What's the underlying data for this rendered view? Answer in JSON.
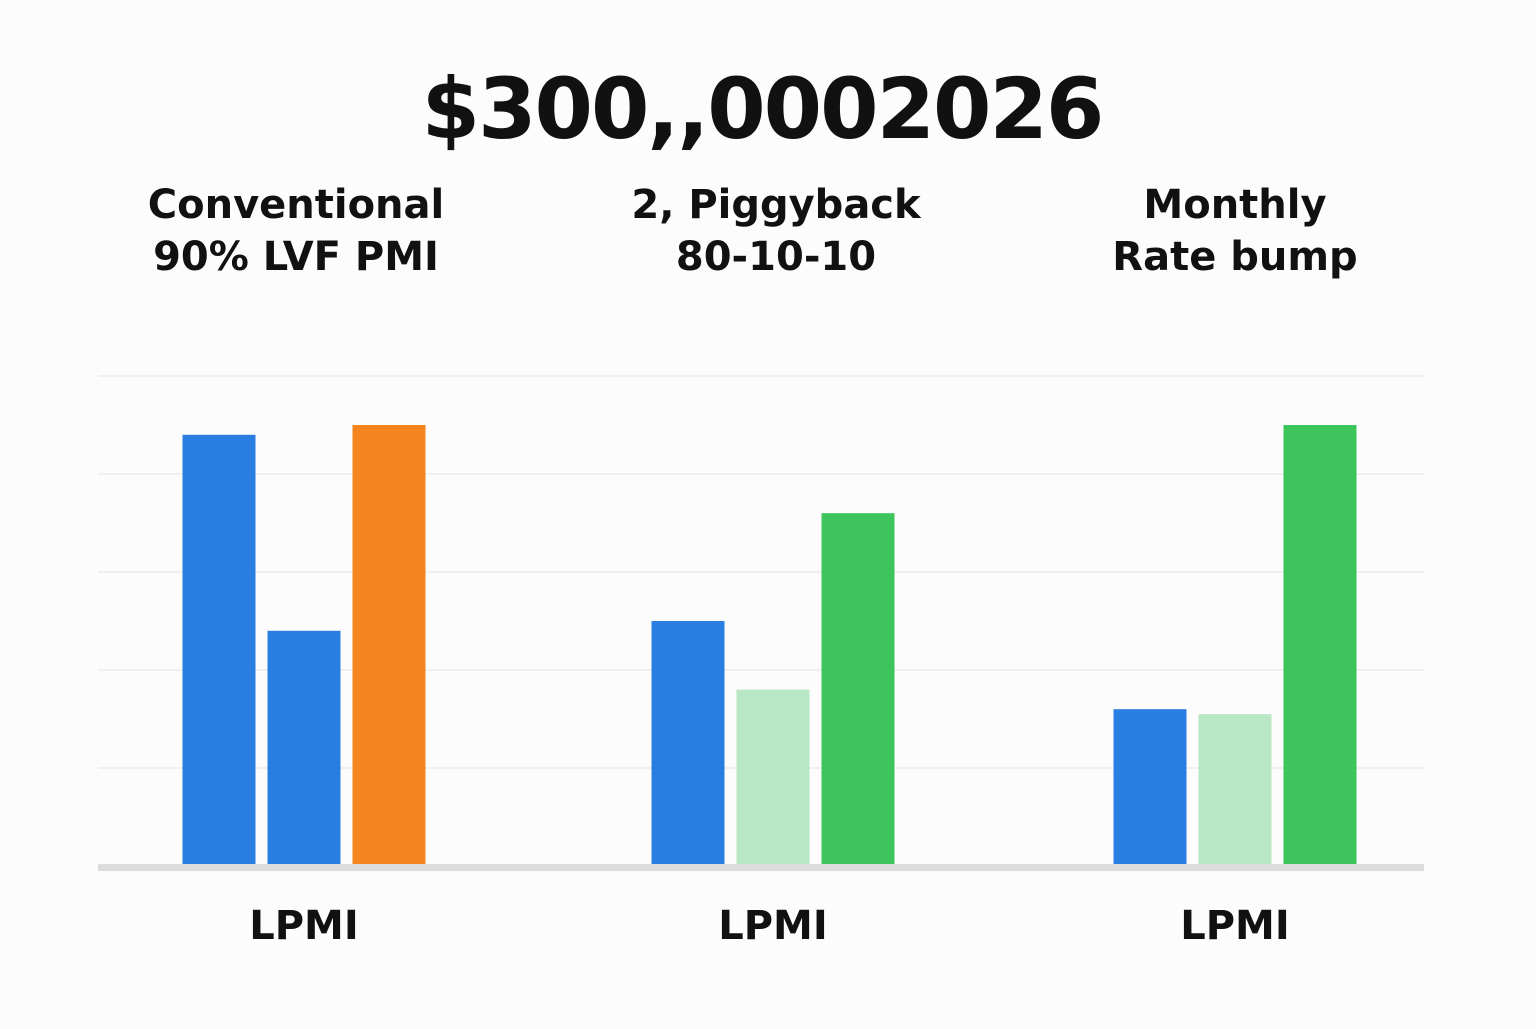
{
  "chart_data": {
    "type": "bar",
    "title": "$300,,0002026",
    "groups": [
      {
        "title_lines": [
          "Conventional",
          "90% LVF  PMI"
        ],
        "category": "LPMI",
        "bars": [
          {
            "value": 4.4,
            "color": "#2a7de1"
          },
          {
            "value": 2.4,
            "color": "#2a7de1"
          },
          {
            "value": 4.5,
            "color": "#f5851f"
          }
        ]
      },
      {
        "title_lines": [
          "2, Piggyback",
          "80-10-10"
        ],
        "category": "LPMI",
        "bars": [
          {
            "value": 2.5,
            "color": "#2a7de1"
          },
          {
            "value": 1.8,
            "color": "#b9e6c4"
          },
          {
            "value": 3.6,
            "color": "#3dc45c"
          }
        ]
      },
      {
        "title_lines": [
          "Monthly",
          "Rate bump"
        ],
        "category": "LPMI",
        "bars": [
          {
            "value": 1.6,
            "color": "#2a7de1"
          },
          {
            "value": 1.55,
            "color": "#b9e6c4"
          },
          {
            "value": 4.5,
            "color": "#3dc45c"
          }
        ]
      }
    ],
    "ylim": [
      0,
      5
    ],
    "grid": true,
    "colors": {
      "gridline": "#ececec",
      "baseline": "#dddddd"
    }
  }
}
